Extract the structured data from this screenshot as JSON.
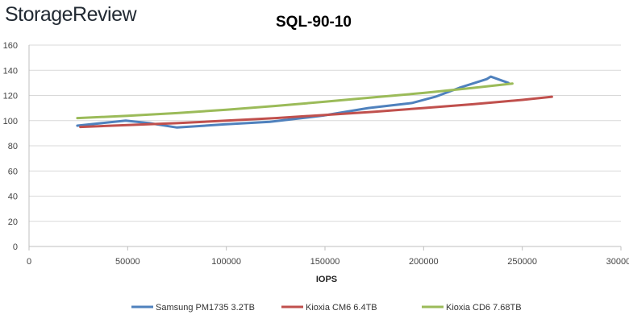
{
  "brand": {
    "text": "StorageReview"
  },
  "chart_data": {
    "type": "line",
    "title": "SQL-90-10",
    "xlabel": "IOPS",
    "ylabel": "",
    "xlim": [
      0,
      300000
    ],
    "ylim": [
      0,
      160
    ],
    "x_ticks": [
      0,
      50000,
      100000,
      150000,
      200000,
      250000,
      300000
    ],
    "x_tick_labels": [
      "0",
      "50000",
      "100000",
      "150000",
      "200000",
      "250000",
      "300000"
    ],
    "y_ticks": [
      0,
      20,
      40,
      60,
      80,
      100,
      120,
      140,
      160
    ],
    "y_tick_labels": [
      "0",
      "20",
      "40",
      "60",
      "80",
      "100",
      "120",
      "140",
      "160"
    ],
    "grid": "horizontal",
    "legend_position": "bottom",
    "series": [
      {
        "name": "Samsung PM1735 3.2TB",
        "color": "#4f81bd",
        "x": [
          24500,
          49000,
          61000,
          75000,
          99000,
          122000,
          149000,
          172000,
          194000,
          206000,
          218000,
          232000,
          234000,
          243000
        ],
        "y": [
          96,
          100,
          98,
          94.5,
          97,
          99,
          104,
          110,
          114,
          119,
          126,
          133,
          135,
          130
        ]
      },
      {
        "name": "Kioxia CM6 6.4TB",
        "color": "#c0504d",
        "x": [
          26000,
          50000,
          75000,
          100000,
          125000,
          150000,
          175000,
          200000,
          225000,
          250000,
          265000
        ],
        "y": [
          95,
          96.5,
          98,
          100,
          102,
          104.5,
          107,
          110,
          113,
          116.5,
          119
        ]
      },
      {
        "name": "Kioxia CD6 7.68TB",
        "color": "#9bbb59",
        "x": [
          24500,
          50000,
          75000,
          100000,
          125000,
          150000,
          175000,
          200000,
          225000,
          245000
        ],
        "y": [
          102,
          103.8,
          106,
          108.7,
          111.7,
          115,
          118.5,
          122,
          126,
          129.5
        ]
      }
    ]
  }
}
